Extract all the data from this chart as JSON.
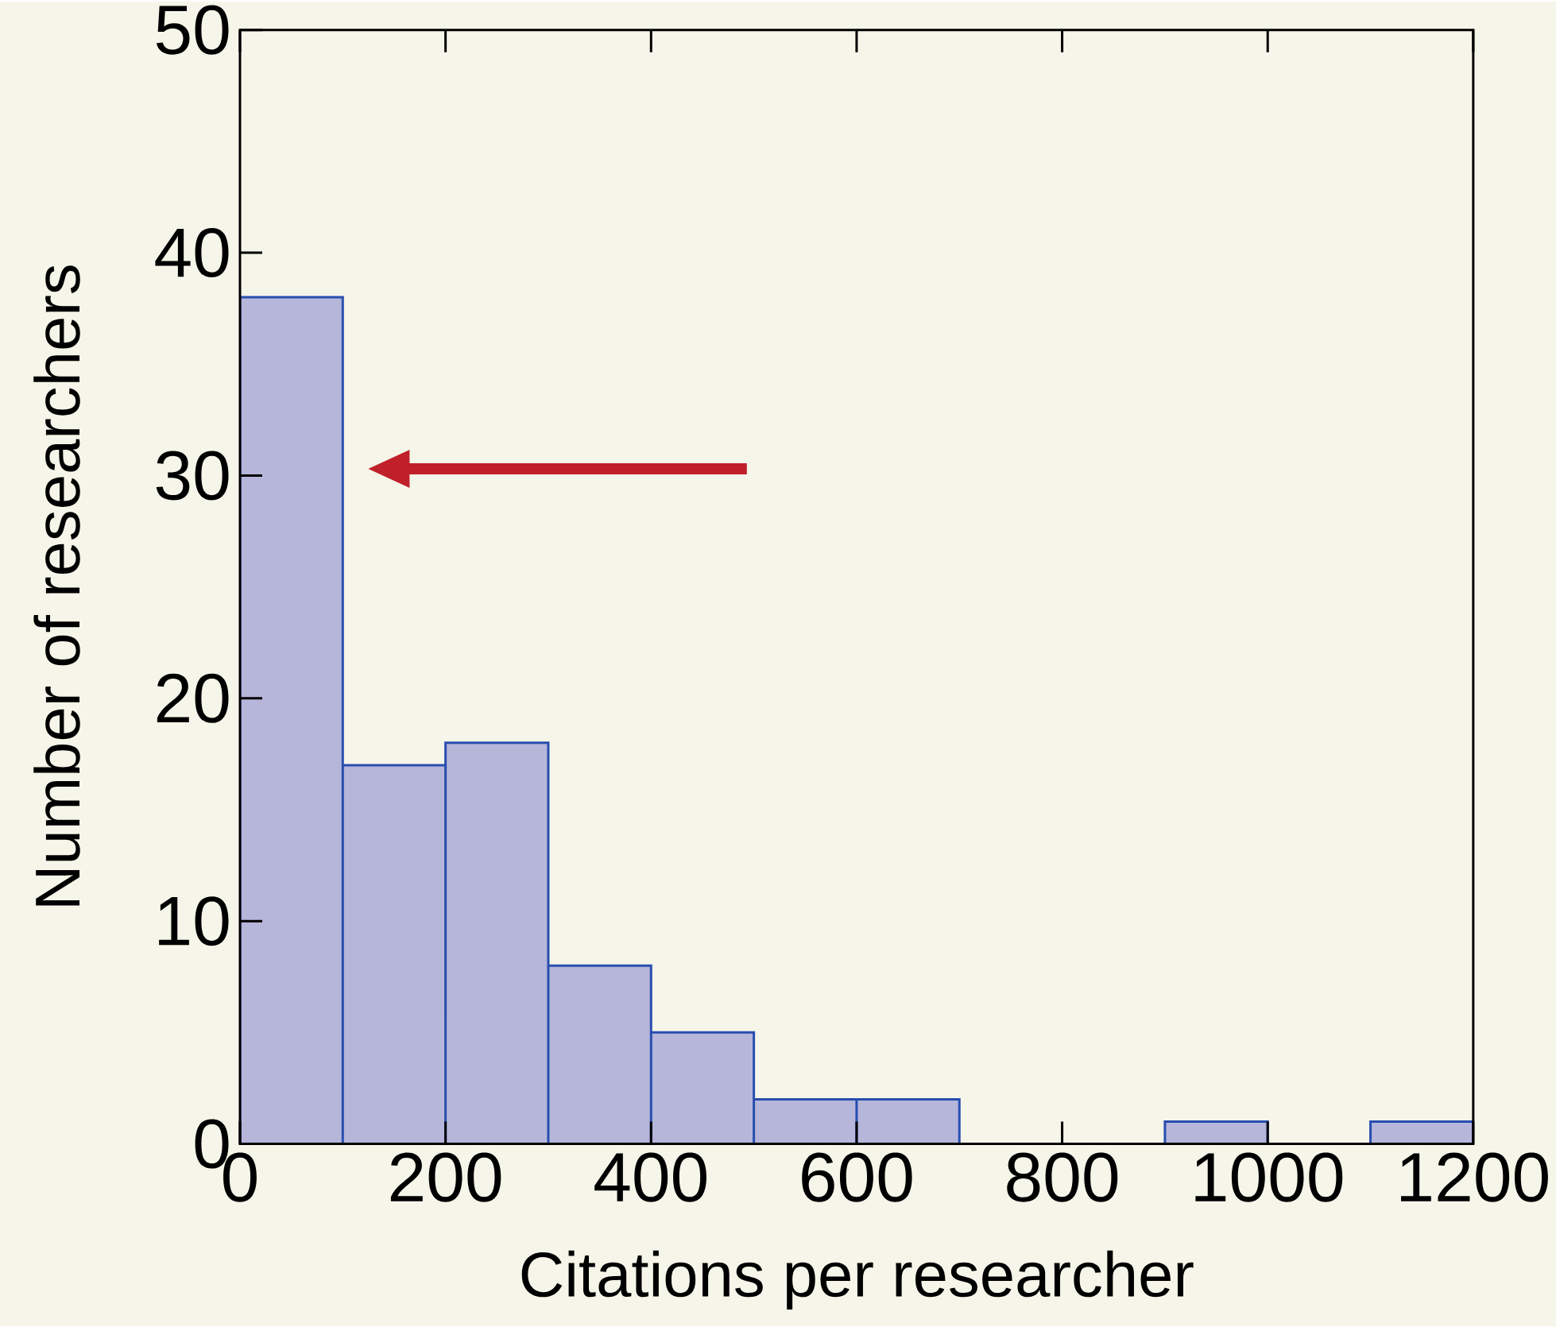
{
  "chart_data": {
    "type": "histogram",
    "xlabel": "Citations per researcher",
    "ylabel": "Number of researchers",
    "bins": [
      0,
      100,
      200,
      300,
      400,
      500,
      600,
      700,
      800,
      900,
      1000,
      1100,
      1200
    ],
    "values": [
      38,
      17,
      18,
      8,
      5,
      2,
      2,
      0,
      0,
      1,
      0,
      1
    ],
    "color": "#b6b5da",
    "xlim": [
      0,
      1200
    ],
    "ylim": [
      0,
      50
    ],
    "xticks": [
      0,
      200,
      400,
      600,
      800,
      1000,
      1200
    ],
    "yticks": [
      0,
      10,
      20,
      30,
      40,
      50
    ]
  }
}
